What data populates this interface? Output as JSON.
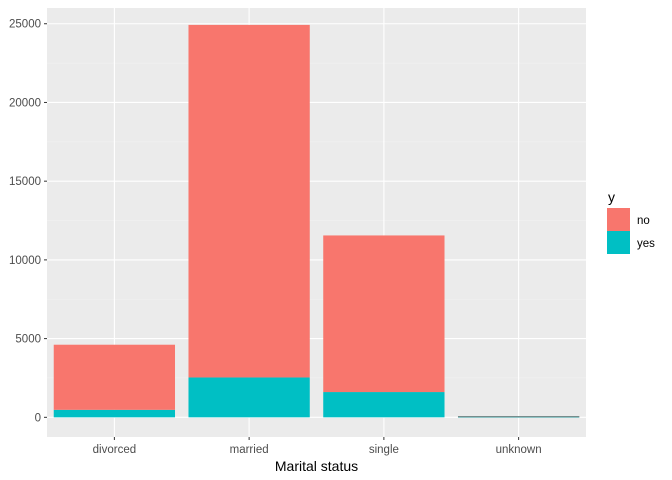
{
  "chart_data": {
    "type": "bar",
    "stacked": true,
    "categories": [
      "divorced",
      "married",
      "single",
      "unknown"
    ],
    "series": [
      {
        "name": "yes",
        "values": [
          476,
          2532,
          1605,
          12
        ]
      },
      {
        "name": "no",
        "values": [
          4136,
          22396,
          9948,
          68
        ]
      }
    ],
    "xlabel": "Marital status",
    "ylabel": "",
    "ylim": [
      0,
      26000
    ],
    "yticks": [
      0,
      5000,
      10000,
      15000,
      20000,
      25000
    ],
    "grid": true,
    "legend": {
      "title": "y",
      "position": "right",
      "entries": [
        "no",
        "yes"
      ]
    },
    "colors": {
      "no": "#F8766D",
      "yes": "#00BFC4",
      "panel": "#EBEBEB",
      "grid_major": "#FFFFFF",
      "grid_minor": "#F2F2F2"
    }
  }
}
